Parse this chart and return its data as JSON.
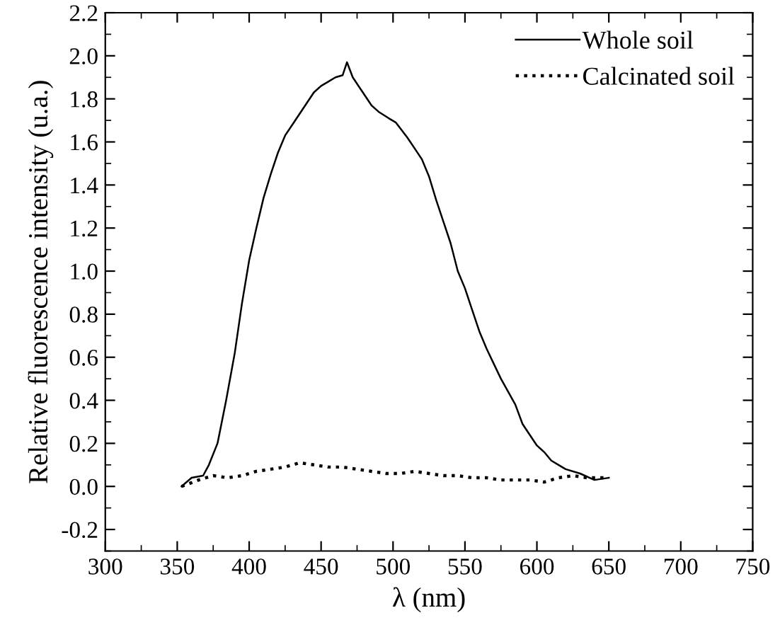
{
  "chart_data": {
    "type": "line",
    "xlabel": "λ (nm)",
    "ylabel": "Relative fluorescence intensity (u.a.)",
    "xlim": [
      300,
      750
    ],
    "xticks": [
      300,
      350,
      400,
      450,
      500,
      550,
      600,
      650,
      700,
      750
    ],
    "ylim": [
      -0.3,
      2.2
    ],
    "yticks": [
      {
        "value": -0.2,
        "label": "-0.2"
      },
      {
        "value": 0,
        "label": "0.0"
      },
      {
        "value": 0.2,
        "label": "0.2"
      },
      {
        "value": 0.4,
        "label": "0.4"
      },
      {
        "value": 0.6,
        "label": "0.6"
      },
      {
        "value": 0.8,
        "label": "0.8"
      },
      {
        "value": 1.0,
        "label": "1.0"
      },
      {
        "value": 1.2,
        "label": "1.2"
      },
      {
        "value": 1.4,
        "label": "1.4"
      },
      {
        "value": 1.6,
        "label": "1.6"
      },
      {
        "value": 1.8,
        "label": "1.8"
      },
      {
        "value": 2.0,
        "label": "2.0"
      },
      {
        "value": 2.2,
        "label": "2.2"
      }
    ],
    "legend": "top right",
    "grid": false,
    "series": [
      {
        "name": "Whole soil",
        "color": "#000000",
        "line_style": "solid",
        "x": [
          353,
          360,
          368,
          372,
          378,
          384,
          390,
          395,
          400,
          405,
          410,
          415,
          420,
          425,
          430,
          435,
          440,
          445,
          450,
          455,
          460,
          465,
          468,
          472,
          478,
          485,
          490,
          497,
          502,
          510,
          515,
          520,
          525,
          530,
          535,
          540,
          545,
          550,
          555,
          560,
          565,
          570,
          575,
          580,
          585,
          590,
          595,
          600,
          605,
          610,
          615,
          620,
          630,
          640,
          650
        ],
        "values": [
          0.0,
          0.04,
          0.05,
          0.1,
          0.2,
          0.4,
          0.62,
          0.85,
          1.05,
          1.2,
          1.34,
          1.45,
          1.55,
          1.63,
          1.68,
          1.73,
          1.78,
          1.83,
          1.86,
          1.88,
          1.9,
          1.91,
          1.97,
          1.9,
          1.84,
          1.77,
          1.74,
          1.71,
          1.69,
          1.62,
          1.57,
          1.52,
          1.44,
          1.33,
          1.23,
          1.13,
          1.0,
          0.92,
          0.82,
          0.72,
          0.64,
          0.57,
          0.5,
          0.44,
          0.38,
          0.29,
          0.24,
          0.19,
          0.16,
          0.12,
          0.1,
          0.08,
          0.06,
          0.03,
          0.04
        ]
      },
      {
        "name": "Calcinated soil",
        "color": "#000000",
        "line_style": "dotted",
        "x": [
          353,
          365,
          375,
          385,
          395,
          405,
          415,
          425,
          435,
          445,
          455,
          465,
          475,
          485,
          495,
          505,
          515,
          525,
          535,
          545,
          555,
          565,
          575,
          585,
          595,
          605,
          615,
          625,
          635,
          650
        ],
        "values": [
          0.0,
          0.03,
          0.05,
          0.04,
          0.05,
          0.07,
          0.08,
          0.09,
          0.11,
          0.1,
          0.09,
          0.09,
          0.08,
          0.07,
          0.06,
          0.06,
          0.07,
          0.06,
          0.05,
          0.05,
          0.04,
          0.04,
          0.03,
          0.03,
          0.03,
          0.02,
          0.04,
          0.05,
          0.04,
          0.04
        ]
      }
    ]
  }
}
